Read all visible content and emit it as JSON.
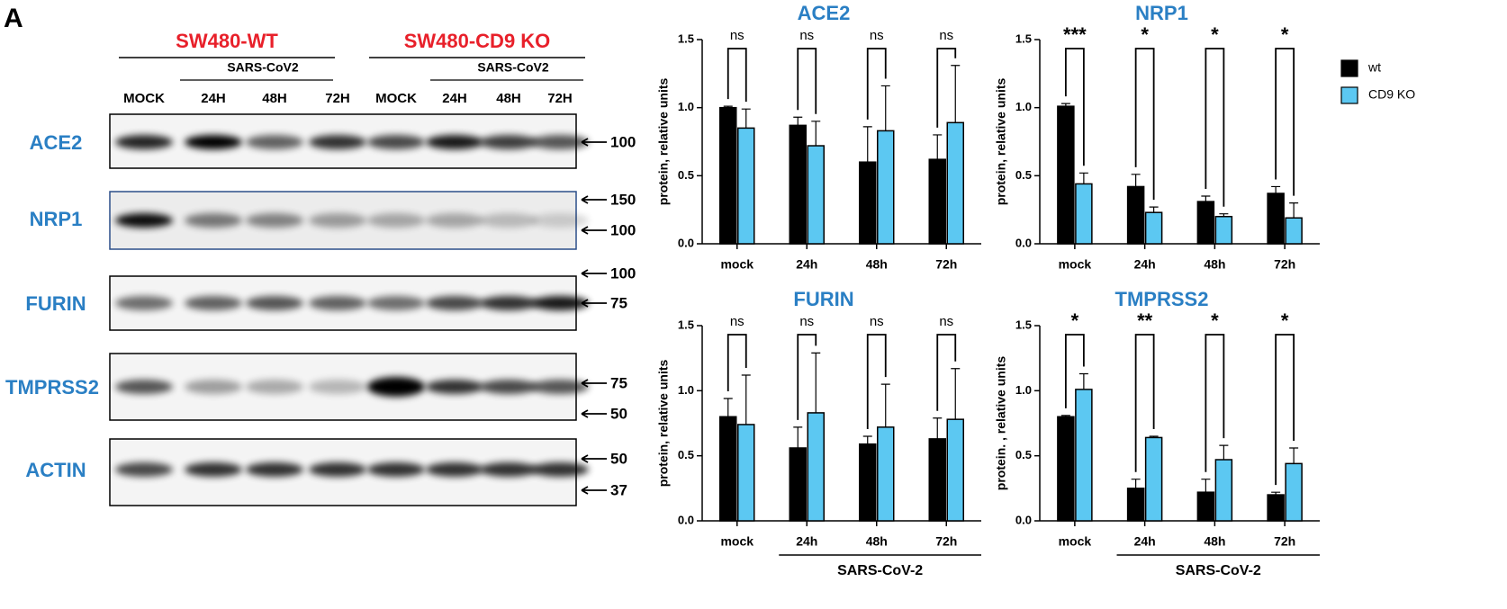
{
  "blot": {
    "panel_label": "A",
    "groups": [
      {
        "name": "SW480-WT",
        "treatment": "SARS-CoV2",
        "lanes": [
          "MOCK",
          "24H",
          "48H",
          "72H"
        ]
      },
      {
        "name": "SW480-CD9 KO",
        "treatment": "SARS-CoV2",
        "lanes": [
          "MOCK",
          "24H",
          "48H",
          "72H"
        ]
      }
    ],
    "rows": [
      {
        "protein": "ACE2",
        "markers": [
          100
        ]
      },
      {
        "protein": "NRP1",
        "markers": [
          150,
          100
        ]
      },
      {
        "protein": "FURIN",
        "markers": [
          100,
          75
        ]
      },
      {
        "protein": "TMPRSS2",
        "markers": [
          75,
          50
        ]
      },
      {
        "protein": "ACTIN",
        "markers": [
          50,
          37
        ]
      }
    ]
  },
  "chart_data": [
    {
      "type": "bar",
      "title": "ACE2",
      "y_label": "protein, relative units",
      "categories": [
        "mock",
        "24h",
        "48h",
        "72h"
      ],
      "ylim": [
        0,
        1.5
      ],
      "yticks": [
        {
          "value": 0,
          "label": "0.0"
        },
        0.5,
        {
          "value": 1,
          "label": "1.0"
        },
        1.5
      ],
      "significance": [
        "ns",
        "ns",
        "ns",
        "ns"
      ],
      "series": [
        {
          "name": "wt",
          "color": "#000000",
          "values": [
            1.0,
            0.87,
            0.6,
            0.62
          ],
          "errors": [
            0.01,
            0.06,
            0.26,
            0.18
          ]
        },
        {
          "name": "CD9 KO",
          "color": "#5cc8f2",
          "values": [
            0.85,
            0.72,
            0.83,
            0.89
          ],
          "errors": [
            0.14,
            0.18,
            0.33,
            0.42
          ]
        }
      ]
    },
    {
      "type": "bar",
      "title": "NRP1",
      "y_label": "protein, relative units",
      "categories": [
        "mock",
        "24h",
        "48h",
        "72h"
      ],
      "ylim": [
        0,
        1.5
      ],
      "yticks": [
        {
          "value": 0,
          "label": "0.0"
        },
        0.5,
        {
          "value": 1,
          "label": "1.0"
        },
        1.5
      ],
      "significance": [
        "***",
        "*",
        "*",
        "*"
      ],
      "legend": "right",
      "series": [
        {
          "name": "wt",
          "color": "#000000",
          "values": [
            1.01,
            0.42,
            0.31,
            0.37
          ],
          "errors": [
            0.02,
            0.09,
            0.04,
            0.05
          ]
        },
        {
          "name": "CD9 KO",
          "color": "#5cc8f2",
          "values": [
            0.44,
            0.23,
            0.2,
            0.19
          ],
          "errors": [
            0.08,
            0.04,
            0.02,
            0.11
          ]
        }
      ]
    },
    {
      "type": "bar",
      "title": "FURIN",
      "y_label": "protein, relative units",
      "categories": [
        "mock",
        "24h",
        "48h",
        "72h"
      ],
      "group_label": "SARS-CoV-2",
      "ylim": [
        0,
        1.5
      ],
      "yticks": [
        {
          "value": 0,
          "label": "0.0"
        },
        0.5,
        {
          "value": 1,
          "label": "1.0"
        },
        1.5
      ],
      "significance": [
        "ns",
        "ns",
        "ns",
        "ns"
      ],
      "series": [
        {
          "name": "wt",
          "color": "#000000",
          "values": [
            0.8,
            0.56,
            0.59,
            0.63
          ],
          "errors": [
            0.14,
            0.16,
            0.06,
            0.16
          ]
        },
        {
          "name": "CD9 KO",
          "color": "#5cc8f2",
          "values": [
            0.74,
            0.83,
            0.72,
            0.78
          ],
          "errors": [
            0.38,
            0.46,
            0.33,
            0.39
          ]
        }
      ]
    },
    {
      "type": "bar",
      "title": "TMPRSS2",
      "y_label": "protein. , relative units",
      "categories": [
        "mock",
        "24h",
        "48h",
        "72h"
      ],
      "group_label": "SARS-CoV-2",
      "ylim": [
        0,
        1.5
      ],
      "yticks": [
        {
          "value": 0,
          "label": "0.0"
        },
        0.5,
        {
          "value": 1,
          "label": "1.0"
        },
        1.5
      ],
      "significance": [
        "*",
        "**",
        "*",
        "*"
      ],
      "series": [
        {
          "name": "wt",
          "color": "#000000",
          "values": [
            0.8,
            0.25,
            0.22,
            0.2
          ],
          "errors": [
            0.01,
            0.07,
            0.1,
            0.02
          ]
        },
        {
          "name": "CD9 KO",
          "color": "#5cc8f2",
          "values": [
            1.01,
            0.64,
            0.47,
            0.44
          ],
          "errors": [
            0.12,
            0.01,
            0.11,
            0.12
          ]
        }
      ]
    }
  ]
}
